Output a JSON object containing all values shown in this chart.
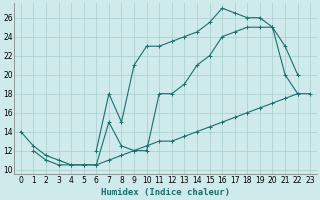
{
  "xlabel": "Humidex (Indice chaleur)",
  "bg_color": "#ceeaea",
  "grid_color": "#aacccc",
  "line_color": "#1a6e6e",
  "xlim": [
    -0.5,
    23.5
  ],
  "ylim": [
    9.5,
    27.5
  ],
  "xticks": [
    0,
    1,
    2,
    3,
    4,
    5,
    6,
    7,
    8,
    9,
    10,
    11,
    12,
    13,
    14,
    15,
    16,
    17,
    18,
    19,
    20,
    21,
    22,
    23
  ],
  "yticks": [
    10,
    12,
    14,
    16,
    18,
    20,
    22,
    24,
    26
  ],
  "line1_x": [
    0,
    1,
    2,
    3,
    4,
    5,
    6,
    7,
    8,
    9,
    10,
    11,
    12,
    13,
    14,
    15,
    16,
    17,
    18,
    19,
    20,
    21,
    22,
    23
  ],
  "line1_y": [
    14,
    12.5,
    11.5,
    11,
    10.5,
    10.5,
    10.5,
    11,
    11.5,
    12,
    12.5,
    13,
    13,
    13.5,
    14,
    14.5,
    15,
    15.5,
    16,
    16.5,
    17,
    17.5,
    18,
    18
  ],
  "line2_x": [
    1,
    2,
    3,
    4,
    5,
    6,
    7,
    8,
    9,
    10,
    11,
    12,
    13,
    14,
    15,
    16,
    17,
    18,
    19,
    20,
    21,
    22
  ],
  "line2_y": [
    12,
    11,
    10.5,
    10.5,
    10.5,
    10.5,
    15,
    12.5,
    12,
    12,
    18,
    18,
    19,
    21,
    22,
    24,
    24.5,
    25,
    25,
    25,
    20,
    18
  ],
  "line3_x": [
    6,
    7,
    8,
    9,
    10,
    11,
    12,
    13,
    14,
    15,
    16,
    17,
    18,
    19,
    20,
    21,
    22
  ],
  "line3_y": [
    12,
    18,
    15,
    21,
    23,
    23,
    23.5,
    24,
    24.5,
    25.5,
    27,
    26.5,
    26,
    26,
    25,
    23,
    20
  ]
}
